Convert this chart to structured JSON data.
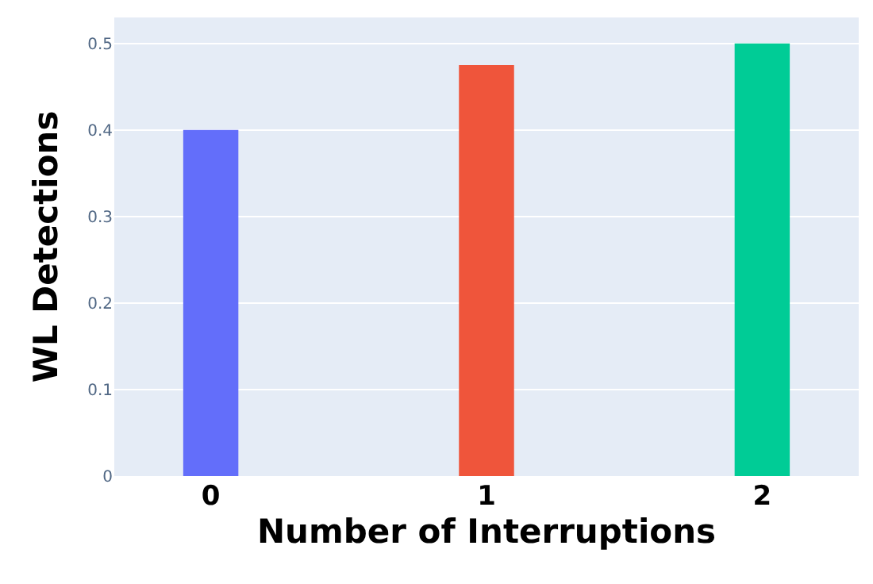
{
  "chart_data": {
    "type": "bar",
    "xlabel": "Number of Interruptions",
    "ylabel": "WL Detections",
    "categories": [
      "0",
      "1",
      "2"
    ],
    "values": [
      0.4,
      0.475,
      0.5
    ],
    "colors": [
      "#636efa",
      "#ef553b",
      "#00cc96"
    ],
    "ylim": [
      0,
      0.53
    ],
    "yticks": [
      0,
      0.1,
      0.2,
      0.3,
      0.4,
      0.5
    ],
    "grid": "y",
    "legend": false
  }
}
